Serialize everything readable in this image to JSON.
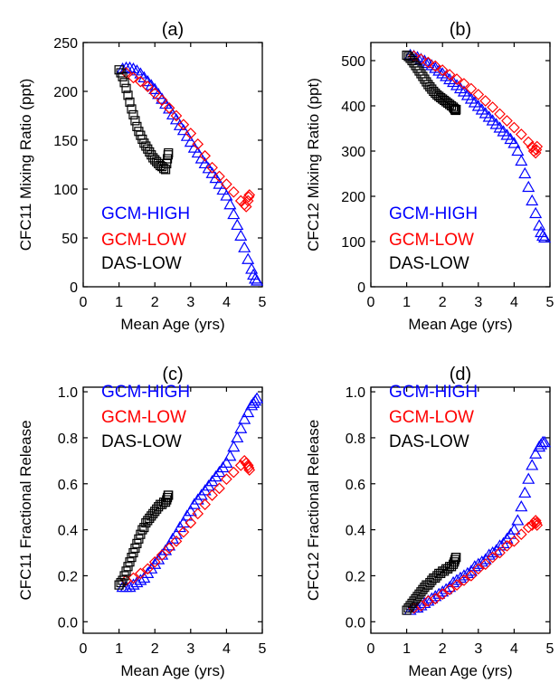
{
  "series_colors": {
    "GCM-HIGH": "#0000ff",
    "GCM-LOW": "#ff0000",
    "DAS-LOW": "#000000"
  },
  "chart_data": [
    {
      "type": "scatter",
      "title": "(a)",
      "xlabel": "Mean Age (yrs)",
      "ylabel": "CFC11 Mixing Ratio (ppt)",
      "xlim": [
        0,
        5
      ],
      "ylim": [
        0,
        250
      ],
      "xticks": [
        0,
        1,
        2,
        3,
        4,
        5
      ],
      "yticks": [
        0,
        50,
        100,
        150,
        200,
        250
      ],
      "legend": [
        "GCM-HIGH",
        "GCM-LOW",
        "DAS-LOW"
      ],
      "legend_position": "bottom-left",
      "series": [
        {
          "name": "GCM-HIGH",
          "marker": "triangle",
          "x": [
            1.1,
            1.2,
            1.3,
            1.4,
            1.5,
            1.6,
            1.7,
            1.8,
            1.9,
            2.0,
            2.1,
            2.2,
            2.3,
            2.4,
            2.5,
            2.6,
            2.7,
            2.8,
            2.9,
            3.0,
            3.1,
            3.2,
            3.3,
            3.4,
            3.5,
            3.6,
            3.7,
            3.8,
            3.9,
            4.0,
            4.1,
            4.2,
            4.3,
            4.4,
            4.5,
            4.6,
            4.7,
            4.75,
            4.8,
            4.85
          ],
          "y": [
            223,
            224,
            224,
            223,
            221,
            218,
            214,
            210,
            206,
            202,
            197,
            192,
            187,
            182,
            176,
            171,
            165,
            160,
            154,
            148,
            142,
            137,
            131,
            126,
            121,
            116,
            111,
            105,
            99,
            93,
            84,
            74,
            63,
            52,
            40,
            28,
            18,
            12,
            8,
            6
          ]
        },
        {
          "name": "GCM-LOW",
          "marker": "diamond",
          "x": [
            1.2,
            1.4,
            1.6,
            1.8,
            2.0,
            2.2,
            2.4,
            2.6,
            2.8,
            3.0,
            3.2,
            3.4,
            3.6,
            3.8,
            4.0,
            4.2,
            4.4,
            4.5,
            4.55,
            4.6,
            4.62,
            4.64
          ],
          "y": [
            219,
            214,
            210,
            205,
            198,
            191,
            183,
            175,
            166,
            157,
            146,
            134,
            122,
            113,
            105,
            97,
            88,
            84,
            82,
            88,
            92,
            94
          ]
        },
        {
          "name": "DAS-LOW",
          "marker": "square",
          "x": [
            1.0,
            1.05,
            1.1,
            1.15,
            1.2,
            1.25,
            1.3,
            1.35,
            1.4,
            1.45,
            1.5,
            1.55,
            1.6,
            1.65,
            1.7,
            1.75,
            1.8,
            1.85,
            1.9,
            1.95,
            2.0,
            2.05,
            2.1,
            2.15,
            2.2,
            2.25,
            2.3,
            2.33,
            2.35,
            2.37,
            2.38
          ],
          "y": [
            222,
            219,
            215,
            209,
            203,
            196,
            189,
            182,
            176,
            170,
            164,
            159,
            155,
            151,
            147,
            144,
            141,
            138,
            135,
            132,
            130,
            128,
            126,
            124,
            123,
            121,
            120,
            126,
            131,
            135,
            137
          ]
        }
      ]
    },
    {
      "type": "scatter",
      "title": "(b)",
      "xlabel": "Mean Age (yrs)",
      "ylabel": "CFC12 Mixing Ratio (ppt)",
      "xlim": [
        0,
        5
      ],
      "ylim": [
        0,
        540
      ],
      "xticks": [
        0,
        1,
        2,
        3,
        4,
        5
      ],
      "yticks": [
        0,
        100,
        200,
        300,
        400,
        500
      ],
      "legend": [
        "GCM-HIGH",
        "GCM-LOW",
        "DAS-LOW"
      ],
      "legend_position": "bottom-left",
      "series": [
        {
          "name": "GCM-HIGH",
          "marker": "triangle",
          "x": [
            1.1,
            1.2,
            1.3,
            1.4,
            1.5,
            1.6,
            1.7,
            1.8,
            1.9,
            2.0,
            2.1,
            2.2,
            2.3,
            2.4,
            2.5,
            2.6,
            2.7,
            2.8,
            2.9,
            3.0,
            3.1,
            3.2,
            3.3,
            3.4,
            3.5,
            3.6,
            3.7,
            3.8,
            3.9,
            4.0,
            4.1,
            4.2,
            4.3,
            4.4,
            4.5,
            4.6,
            4.7,
            4.75,
            4.8,
            4.85
          ],
          "y": [
            512,
            510,
            507,
            503,
            499,
            494,
            489,
            483,
            477,
            471,
            465,
            458,
            452,
            445,
            438,
            431,
            423,
            415,
            407,
            399,
            391,
            383,
            375,
            367,
            359,
            351,
            343,
            335,
            326,
            317,
            300,
            278,
            250,
            220,
            190,
            162,
            135,
            120,
            112,
            108
          ]
        },
        {
          "name": "GCM-LOW",
          "marker": "diamond",
          "x": [
            1.2,
            1.4,
            1.6,
            1.8,
            2.0,
            2.2,
            2.4,
            2.6,
            2.8,
            3.0,
            3.2,
            3.4,
            3.6,
            3.8,
            4.0,
            4.2,
            4.4,
            4.5,
            4.55,
            4.6,
            4.62,
            4.64
          ],
          "y": [
            510,
            503,
            496,
            488,
            479,
            469,
            459,
            449,
            438,
            425,
            411,
            397,
            382,
            367,
            352,
            337,
            320,
            309,
            300,
            296,
            303,
            310
          ]
        },
        {
          "name": "DAS-LOW",
          "marker": "square",
          "x": [
            1.0,
            1.05,
            1.1,
            1.15,
            1.2,
            1.25,
            1.3,
            1.35,
            1.4,
            1.45,
            1.5,
            1.55,
            1.6,
            1.65,
            1.7,
            1.75,
            1.8,
            1.85,
            1.9,
            1.95,
            2.0,
            2.05,
            2.1,
            2.15,
            2.2,
            2.25,
            2.3,
            2.33,
            2.35,
            2.37,
            2.38
          ],
          "y": [
            512,
            509,
            505,
            500,
            495,
            489,
            483,
            477,
            471,
            465,
            459,
            453,
            447,
            442,
            437,
            432,
            428,
            424,
            421,
            418,
            415,
            412,
            409,
            406,
            403,
            400,
            397,
            394,
            391,
            390,
            392
          ]
        }
      ]
    },
    {
      "type": "scatter",
      "title": "(c)",
      "xlabel": "Mean Age (yrs)",
      "ylabel": "CFC11 Fractional Release",
      "xlim": [
        0,
        5
      ],
      "ylim": [
        -0.05,
        1.02
      ],
      "xticks": [
        0,
        1,
        2,
        3,
        4,
        5
      ],
      "yticks": [
        "0.0",
        "0.2",
        "0.4",
        "0.6",
        "0.8",
        "1.0"
      ],
      "legend": [
        "GCM-HIGH",
        "GCM-LOW",
        "DAS-LOW"
      ],
      "legend_position": "top-left",
      "series": [
        {
          "name": "GCM-HIGH",
          "marker": "triangle",
          "x": [
            1.1,
            1.2,
            1.3,
            1.4,
            1.5,
            1.6,
            1.7,
            1.8,
            1.9,
            2.0,
            2.1,
            2.2,
            2.3,
            2.4,
            2.5,
            2.6,
            2.7,
            2.8,
            2.9,
            3.0,
            3.1,
            3.2,
            3.3,
            3.4,
            3.5,
            3.6,
            3.7,
            3.8,
            3.9,
            4.0,
            4.1,
            4.2,
            4.3,
            4.4,
            4.5,
            4.6,
            4.7,
            4.75,
            4.8,
            4.85
          ],
          "y": [
            0.15,
            0.15,
            0.15,
            0.16,
            0.17,
            0.18,
            0.19,
            0.21,
            0.23,
            0.25,
            0.27,
            0.29,
            0.31,
            0.33,
            0.36,
            0.38,
            0.41,
            0.43,
            0.46,
            0.48,
            0.51,
            0.53,
            0.55,
            0.57,
            0.59,
            0.61,
            0.63,
            0.65,
            0.67,
            0.69,
            0.72,
            0.76,
            0.8,
            0.84,
            0.88,
            0.91,
            0.94,
            0.95,
            0.96,
            0.97
          ]
        },
        {
          "name": "GCM-LOW",
          "marker": "diamond",
          "x": [
            1.2,
            1.4,
            1.6,
            1.8,
            2.0,
            2.2,
            2.4,
            2.6,
            2.8,
            3.0,
            3.2,
            3.4,
            3.6,
            3.8,
            4.0,
            4.2,
            4.4,
            4.5,
            4.55,
            4.6,
            4.62,
            4.64
          ],
          "y": [
            0.18,
            0.19,
            0.21,
            0.23,
            0.26,
            0.29,
            0.32,
            0.35,
            0.39,
            0.43,
            0.47,
            0.51,
            0.55,
            0.58,
            0.62,
            0.65,
            0.68,
            0.7,
            0.69,
            0.68,
            0.67,
            0.66
          ]
        },
        {
          "name": "DAS-LOW",
          "marker": "square",
          "x": [
            1.0,
            1.05,
            1.1,
            1.15,
            1.2,
            1.25,
            1.3,
            1.35,
            1.4,
            1.45,
            1.5,
            1.55,
            1.6,
            1.65,
            1.7,
            1.75,
            1.8,
            1.85,
            1.9,
            1.95,
            2.0,
            2.05,
            2.1,
            2.15,
            2.2,
            2.25,
            2.3,
            2.33,
            2.35,
            2.37,
            2.38
          ],
          "y": [
            0.16,
            0.17,
            0.18,
            0.2,
            0.22,
            0.24,
            0.26,
            0.28,
            0.3,
            0.32,
            0.34,
            0.36,
            0.38,
            0.4,
            0.41,
            0.43,
            0.44,
            0.45,
            0.46,
            0.47,
            0.48,
            0.49,
            0.5,
            0.51,
            0.51,
            0.52,
            0.52,
            0.53,
            0.54,
            0.55,
            0.55
          ]
        }
      ]
    },
    {
      "type": "scatter",
      "title": "(d)",
      "xlabel": "Mean Age (yrs)",
      "ylabel": "CFC12 Fractional Release",
      "xlim": [
        0,
        5
      ],
      "ylim": [
        -0.05,
        1.02
      ],
      "xticks": [
        0,
        1,
        2,
        3,
        4,
        5
      ],
      "yticks": [
        "0.0",
        "0.2",
        "0.4",
        "0.6",
        "0.8",
        "1.0"
      ],
      "legend": [
        "GCM-HIGH",
        "GCM-LOW",
        "DAS-LOW"
      ],
      "legend_position": "top-left",
      "series": [
        {
          "name": "GCM-HIGH",
          "marker": "triangle",
          "x": [
            1.1,
            1.2,
            1.3,
            1.4,
            1.5,
            1.6,
            1.7,
            1.8,
            1.9,
            2.0,
            2.1,
            2.2,
            2.3,
            2.4,
            2.5,
            2.6,
            2.7,
            2.8,
            2.9,
            3.0,
            3.1,
            3.2,
            3.3,
            3.4,
            3.5,
            3.6,
            3.7,
            3.8,
            3.9,
            4.0,
            4.1,
            4.2,
            4.3,
            4.4,
            4.5,
            4.6,
            4.7,
            4.75,
            4.8,
            4.85
          ],
          "y": [
            0.05,
            0.06,
            0.06,
            0.07,
            0.08,
            0.09,
            0.1,
            0.11,
            0.12,
            0.13,
            0.14,
            0.15,
            0.17,
            0.18,
            0.19,
            0.2,
            0.21,
            0.22,
            0.24,
            0.25,
            0.26,
            0.27,
            0.29,
            0.3,
            0.31,
            0.33,
            0.34,
            0.36,
            0.38,
            0.4,
            0.44,
            0.5,
            0.56,
            0.62,
            0.68,
            0.73,
            0.76,
            0.77,
            0.78,
            0.78
          ]
        },
        {
          "name": "GCM-LOW",
          "marker": "diamond",
          "x": [
            1.2,
            1.4,
            1.6,
            1.8,
            2.0,
            2.2,
            2.4,
            2.6,
            2.8,
            3.0,
            3.2,
            3.4,
            3.6,
            3.8,
            4.0,
            4.2,
            4.4,
            4.5,
            4.55,
            4.6,
            4.62,
            4.64
          ],
          "y": [
            0.06,
            0.07,
            0.09,
            0.1,
            0.12,
            0.14,
            0.16,
            0.18,
            0.2,
            0.23,
            0.25,
            0.28,
            0.3,
            0.33,
            0.35,
            0.38,
            0.41,
            0.42,
            0.43,
            0.44,
            0.43,
            0.42
          ]
        },
        {
          "name": "DAS-LOW",
          "marker": "square",
          "x": [
            1.0,
            1.05,
            1.1,
            1.15,
            1.2,
            1.25,
            1.3,
            1.35,
            1.4,
            1.45,
            1.5,
            1.55,
            1.6,
            1.65,
            1.7,
            1.75,
            1.8,
            1.85,
            1.9,
            1.95,
            2.0,
            2.05,
            2.1,
            2.15,
            2.2,
            2.25,
            2.3,
            2.33,
            2.35,
            2.37,
            2.38
          ],
          "y": [
            0.05,
            0.06,
            0.07,
            0.08,
            0.09,
            0.1,
            0.11,
            0.12,
            0.13,
            0.14,
            0.15,
            0.16,
            0.16,
            0.17,
            0.18,
            0.19,
            0.19,
            0.2,
            0.21,
            0.21,
            0.22,
            0.22,
            0.23,
            0.23,
            0.24,
            0.24,
            0.25,
            0.26,
            0.27,
            0.28,
            0.28
          ]
        }
      ]
    }
  ]
}
